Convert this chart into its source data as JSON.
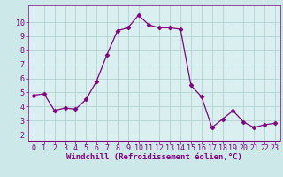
{
  "x": [
    0,
    1,
    2,
    3,
    4,
    5,
    6,
    7,
    8,
    9,
    10,
    11,
    12,
    13,
    14,
    15,
    16,
    17,
    18,
    19,
    20,
    21,
    22,
    23
  ],
  "y": [
    4.8,
    4.9,
    3.7,
    3.9,
    3.8,
    4.5,
    5.8,
    7.7,
    9.4,
    9.6,
    10.5,
    9.8,
    9.6,
    9.6,
    9.5,
    5.5,
    4.7,
    2.5,
    3.1,
    3.7,
    2.9,
    2.5,
    2.7,
    2.8
  ],
  "line_color": "#800080",
  "marker": "D",
  "markersize": 2.5,
  "linewidth": 0.9,
  "xlabel": "Windchill (Refroidissement éolien,°C)",
  "xlim": [
    -0.5,
    23.5
  ],
  "ylim": [
    1.5,
    11.2
  ],
  "yticks": [
    2,
    3,
    4,
    5,
    6,
    7,
    8,
    9,
    10
  ],
  "xticks": [
    0,
    1,
    2,
    3,
    4,
    5,
    6,
    7,
    8,
    9,
    10,
    11,
    12,
    13,
    14,
    15,
    16,
    17,
    18,
    19,
    20,
    21,
    22,
    23
  ],
  "bg_color": "#cce8e8",
  "grid_color": "#aacccc",
  "line_bg": "#daf0f0",
  "tick_color": "#800080",
  "label_color": "#800080",
  "spine_color": "#800080",
  "font_size": 6,
  "xlabel_fontsize": 6.5
}
